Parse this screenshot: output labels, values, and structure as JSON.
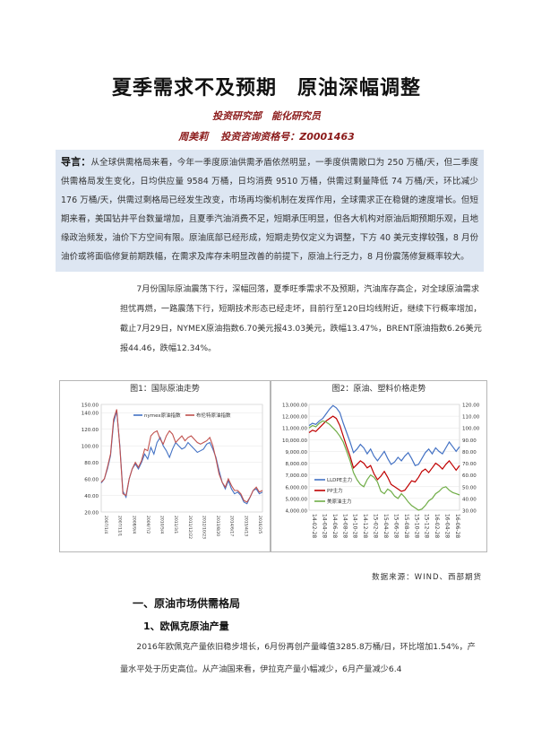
{
  "header": {
    "title": "夏季需求不及预期　原油深幅调整",
    "department": "投资研究部　能化研究员",
    "author": "周美莉",
    "license": "投资咨询资格号：Z0001463"
  },
  "intro": {
    "label": "导言：",
    "text": "从全球供需格局来看，今年一季度原油供需矛盾依然明显，一季度供需敞口为 250 万桶/天，但二季度供需格局发生变化，日均供应量 9584 万桶，日均消费 9510 万桶，供需过剩量降低 74 万桶/天，环比减少 176 万桶/天，供需过剩格局已经发生改变，市场再均衡机制在发挥作用，全球需求正在稳健的速度增长。但短期来看，美国钻井平台数量增加，且夏季汽油消费不足，短期承压明显，但各大机构对原油后期预期乐观，且地缘政治频发，油价下方空间有限。原油底部已经形成，短期走势仅定义为调整，下方 40 美元支撑较强，8 月份油价或将面临修复前期跌幅，在需求及库存未明显改善的前提下，原油上行乏力，8 月份震荡修复概率较大。"
  },
  "summary": "7月份国际原油震荡下行，深幅回落，夏季旺季需求不及预期，汽油库存高企，对全球原油需求担忧再燃，一路震荡下行，短期技术形态已经走坏，目前行至120日均线附近，继续下行概率增加，截止7月29日，NYMEX原油指数6.70美元报43.03美元，跌幅13.47%，BRENT原油指数6.26美元报44.46，跌幅12.34%。",
  "charts": {
    "chart1_caption": "图1：国际原油走势",
    "chart2_caption": "图2：原油、塑料价格走势",
    "source": "数据来源：WIND、西部期货"
  },
  "chart_data": [
    {
      "type": "line",
      "title": "图1：国际原油走势",
      "ylim": [
        20,
        150
      ],
      "yticks": [
        "150.00",
        "140.00",
        "120.00",
        "100.00",
        "80.00",
        "60.00",
        "40.00",
        "20.00"
      ],
      "xticks": [
        "2007/1/4",
        "2007/11/1",
        "2008/9/4",
        "2009/7/2",
        "2010/5/4",
        "2011/3/1",
        "2011/12/22",
        "2012/10/23",
        "2013/8/20",
        "2014/6/17",
        "2015/4/13",
        "2016/2/5"
      ],
      "series": [
        {
          "name": "nymex原油指数",
          "color": "#4472c4",
          "values": [
            55,
            60,
            72,
            88,
            128,
            142,
            100,
            45,
            38,
            60,
            72,
            78,
            72,
            80,
            90,
            84,
            98,
            90,
            104,
            110,
            100,
            94,
            86,
            96,
            104,
            100,
            96,
            98,
            104,
            100,
            96,
            92,
            94,
            96,
            102,
            104,
            96,
            86,
            70,
            56,
            48,
            58,
            48,
            42,
            44,
            40,
            32,
            30,
            38,
            46,
            48,
            42,
            44
          ]
        },
        {
          "name": "布伦特原油指数",
          "color": "#c0504d",
          "values": [
            56,
            60,
            74,
            90,
            132,
            144,
            98,
            42,
            40,
            60,
            72,
            80,
            74,
            82,
            96,
            94,
            112,
            116,
            118,
            108,
            102,
            112,
            118,
            114,
            104,
            108,
            112,
            106,
            110,
            112,
            108,
            104,
            102,
            104,
            106,
            110,
            100,
            84,
            66,
            56,
            50,
            60,
            52,
            46,
            46,
            42,
            34,
            32,
            38,
            46,
            50,
            44,
            46
          ]
        }
      ]
    },
    {
      "type": "line",
      "title": "图2：原油、塑料价格走势",
      "yticks_left": [
        "13,000.00",
        "12,000.00",
        "11,000.00",
        "10,000.00",
        "9,000.00",
        "8,000.00",
        "7,000.00",
        "6,000.00",
        "5,000.00",
        "4,000.00"
      ],
      "yticks_right": [
        "120.00",
        "110.00",
        "100.00",
        "90.00",
        "80.00",
        "70.00",
        "60.00",
        "50.00",
        "40.00",
        "30.00"
      ],
      "xticks": [
        "14-02-28",
        "14-04-28",
        "14-06-28",
        "14-08-28",
        "14-10-28",
        "14-12-28",
        "15-02-28",
        "15-04-28",
        "15-06-28",
        "15-08-28",
        "15-10-28",
        "15-12-28",
        "16-02-28",
        "16-04-28",
        "16-06-28"
      ],
      "series": [
        {
          "name": "LLDPE主力",
          "color": "#4472c4",
          "axis": "left",
          "values": [
            11200,
            11400,
            11300,
            11600,
            11800,
            12200,
            12600,
            12900,
            12700,
            12300,
            11400,
            10600,
            9800,
            8900,
            9200,
            9600,
            9300,
            8800,
            9200,
            8600,
            8200,
            8600,
            9000,
            8400,
            7900,
            8100,
            8500,
            8200,
            8600,
            8900,
            8400,
            7800,
            7900,
            8400,
            8900,
            9200,
            8800,
            9300,
            9000,
            8800,
            9300,
            9800,
            9400,
            9000,
            9400
          ]
        },
        {
          "name": "PP主力",
          "color": "#c00000",
          "axis": "left",
          "values": [
            10600,
            10800,
            10700,
            11000,
            11300,
            11600,
            11800,
            12000,
            11800,
            11200,
            10300,
            9400,
            8600,
            7600,
            7900,
            8200,
            8000,
            7600,
            7800,
            7100,
            6600,
            6900,
            7300,
            6800,
            6200,
            6000,
            5800,
            5600,
            5700,
            6100,
            6500,
            6400,
            6800,
            7300,
            7500,
            7200,
            7600,
            8000,
            7800,
            7500,
            7900,
            8200,
            7800,
            7400,
            7800
          ]
        },
        {
          "name": "美原油主力",
          "color": "#70ad47",
          "axis": "right",
          "values": [
            100,
            102,
            101,
            104,
            106,
            105,
            103,
            100,
            97,
            93,
            88,
            80,
            72,
            62,
            56,
            52,
            50,
            56,
            60,
            58,
            54,
            46,
            44,
            48,
            46,
            42,
            40,
            44,
            41,
            37,
            34,
            32,
            30,
            31,
            34,
            38,
            40,
            44,
            46,
            49,
            50,
            47,
            45,
            44,
            43
          ]
        }
      ]
    }
  ],
  "section1": {
    "heading": "一、原油市场供需格局",
    "subheading": "1、欧佩克原油产量",
    "body": "2016年欧佩克产量依旧稳步增长，6月份再创产量峰值3285.8万桶/日，环比增加1.54%，产量水平处于历史高位。从产油国来看，伊拉克产量小幅减少，6月产量减少6.4"
  }
}
